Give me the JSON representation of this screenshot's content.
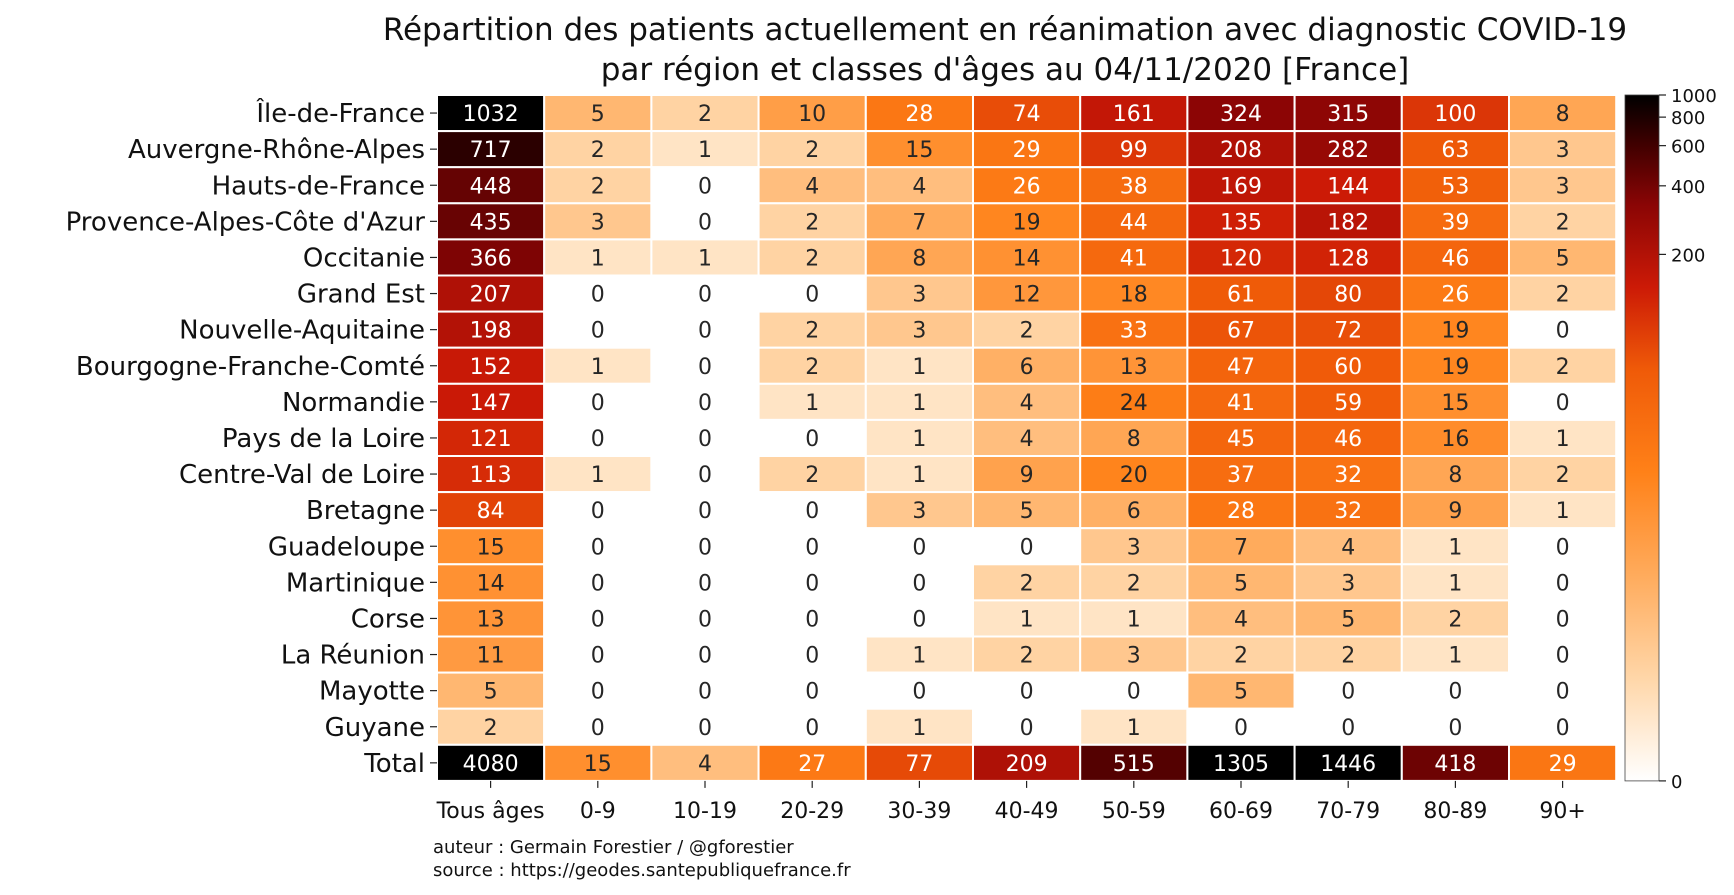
{
  "chart_data": {
    "type": "heatmap",
    "title": "Répartition des patients actuellement en réanimation avec diagnostic COVID-19",
    "subtitle": "par région et classes d'âges au 04/11/2020 [France]",
    "columns": [
      "Tous âges",
      "0-9",
      "10-19",
      "20-29",
      "30-39",
      "40-49",
      "50-59",
      "60-69",
      "70-79",
      "80-89",
      "90+"
    ],
    "rows": [
      {
        "label": "Île-de-France",
        "values": [
          1032,
          5,
          2,
          10,
          28,
          74,
          161,
          324,
          315,
          100,
          8
        ]
      },
      {
        "label": "Auvergne-Rhône-Alpes",
        "values": [
          717,
          2,
          1,
          2,
          15,
          29,
          99,
          208,
          282,
          63,
          3
        ]
      },
      {
        "label": "Hauts-de-France",
        "values": [
          448,
          2,
          0,
          4,
          4,
          26,
          38,
          169,
          144,
          53,
          3
        ]
      },
      {
        "label": "Provence-Alpes-Côte d'Azur",
        "values": [
          435,
          3,
          0,
          2,
          7,
          19,
          44,
          135,
          182,
          39,
          2
        ]
      },
      {
        "label": "Occitanie",
        "values": [
          366,
          1,
          1,
          2,
          8,
          14,
          41,
          120,
          128,
          46,
          5
        ]
      },
      {
        "label": "Grand Est",
        "values": [
          207,
          0,
          0,
          0,
          3,
          12,
          18,
          61,
          80,
          26,
          2
        ]
      },
      {
        "label": "Nouvelle-Aquitaine",
        "values": [
          198,
          0,
          0,
          2,
          3,
          2,
          33,
          67,
          72,
          19,
          0
        ]
      },
      {
        "label": "Bourgogne-Franche-Comté",
        "values": [
          152,
          1,
          0,
          2,
          1,
          6,
          13,
          47,
          60,
          19,
          2
        ]
      },
      {
        "label": "Normandie",
        "values": [
          147,
          0,
          0,
          1,
          1,
          4,
          24,
          41,
          59,
          15,
          0
        ]
      },
      {
        "label": "Pays de la Loire",
        "values": [
          121,
          0,
          0,
          0,
          1,
          4,
          8,
          45,
          46,
          16,
          1
        ]
      },
      {
        "label": "Centre-Val de Loire",
        "values": [
          113,
          1,
          0,
          2,
          1,
          9,
          20,
          37,
          32,
          8,
          2
        ]
      },
      {
        "label": "Bretagne",
        "values": [
          84,
          0,
          0,
          0,
          3,
          5,
          6,
          28,
          32,
          9,
          1
        ]
      },
      {
        "label": "Guadeloupe",
        "values": [
          15,
          0,
          0,
          0,
          0,
          0,
          3,
          7,
          4,
          1,
          0
        ]
      },
      {
        "label": "Martinique",
        "values": [
          14,
          0,
          0,
          0,
          0,
          2,
          2,
          5,
          3,
          1,
          0
        ]
      },
      {
        "label": "Corse",
        "values": [
          13,
          0,
          0,
          0,
          0,
          1,
          1,
          4,
          5,
          2,
          0
        ]
      },
      {
        "label": "La Réunion",
        "values": [
          11,
          0,
          0,
          0,
          1,
          2,
          3,
          2,
          2,
          1,
          0
        ]
      },
      {
        "label": "Mayotte",
        "values": [
          5,
          0,
          0,
          0,
          0,
          0,
          0,
          5,
          0,
          0,
          0
        ]
      },
      {
        "label": "Guyane",
        "values": [
          2,
          0,
          0,
          0,
          1,
          0,
          1,
          0,
          0,
          0,
          0
        ]
      },
      {
        "label": "Total",
        "values": [
          4080,
          15,
          4,
          27,
          77,
          209,
          515,
          1305,
          1446,
          418,
          29
        ]
      }
    ],
    "colorbar": {
      "ticks": [
        0,
        200,
        400,
        600,
        800,
        1000
      ],
      "range": [
        0,
        1000
      ],
      "scale": "symlog",
      "colormap": "gist_heat_r"
    }
  },
  "credits": {
    "line1": "auteur : Germain Forestier / @gforestier",
    "line2": "source : https://geodes.santepubliquefrance.fr"
  }
}
